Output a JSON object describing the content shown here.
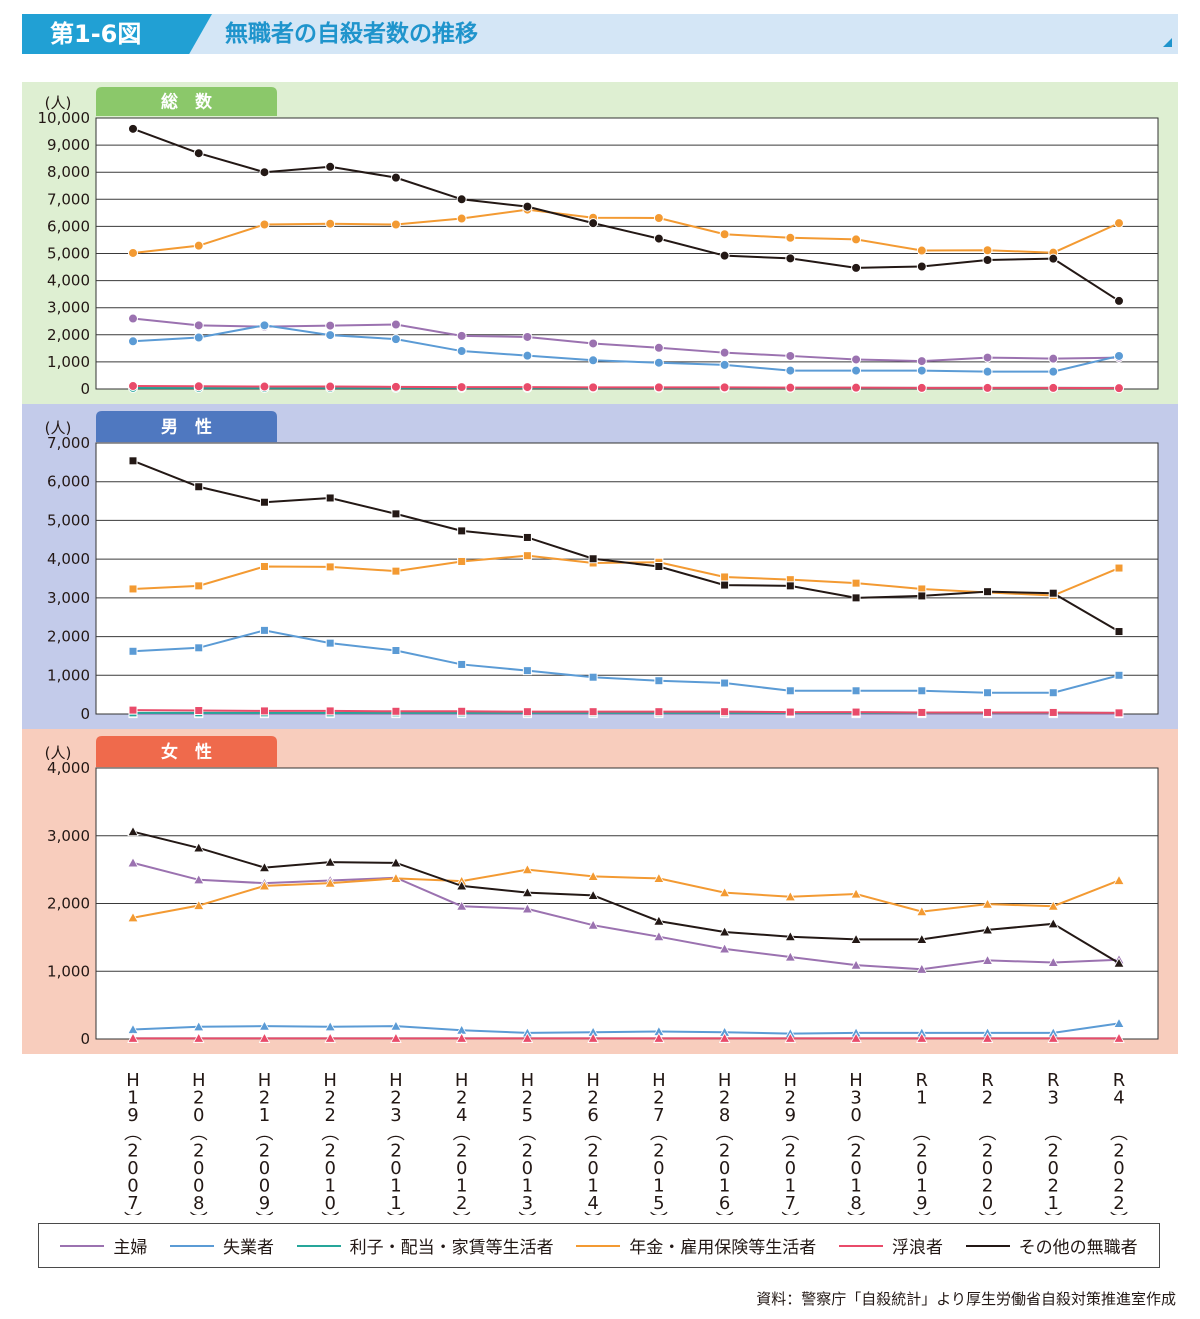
{
  "header": {
    "figure_no": "第1-6図",
    "title": "無職者の自殺者数の推移"
  },
  "colors": {
    "housewife": "#9b72b0",
    "unemployed": "#5b9bd5",
    "interest_dividend": "#26a69a",
    "pension": "#f39a32",
    "vagrant": "#e94b6a",
    "other": "#231815",
    "panel_total_bg": "#deefd2",
    "panel_male_bg": "#c3cbea",
    "panel_female_bg": "#f8cdbd",
    "tab_total": "#8bc86a",
    "tab_male": "#4f78c0",
    "tab_female": "#ef6a4c"
  },
  "chart_data": [
    {
      "type": "line",
      "panel": "total",
      "tab_label": "総　数",
      "ylabel": "(人)",
      "ylim": [
        0,
        10000
      ],
      "yticks": [
        "0",
        "1,000",
        "2,000",
        "3,000",
        "4,000",
        "5,000",
        "6,000",
        "7,000",
        "8,000",
        "9,000",
        "10,000"
      ],
      "yticks_values": [
        0,
        1000,
        2000,
        3000,
        4000,
        5000,
        6000,
        7000,
        8000,
        9000,
        10000
      ],
      "grid": true,
      "marker": "circle",
      "series": [
        {
          "name": "主婦",
          "color_key": "housewife",
          "values": [
            2600,
            2350,
            2300,
            2340,
            2380,
            1960,
            1920,
            1680,
            1520,
            1340,
            1220,
            1090,
            1030,
            1160,
            1120,
            1160
          ]
        },
        {
          "name": "失業者",
          "color_key": "unemployed",
          "values": [
            1760,
            1900,
            2350,
            1990,
            1840,
            1400,
            1230,
            1060,
            970,
            890,
            680,
            680,
            680,
            640,
            640,
            1220
          ]
        },
        {
          "name": "利子・配当・家賃等生活者",
          "color_key": "interest_dividend",
          "values": [
            40,
            40,
            40,
            40,
            40,
            40,
            40,
            40,
            40,
            40,
            40,
            40,
            40,
            40,
            40,
            40
          ]
        },
        {
          "name": "年金・雇用保険等生活者",
          "color_key": "pension",
          "values": [
            5020,
            5290,
            6070,
            6100,
            6070,
            6290,
            6620,
            6320,
            6310,
            5710,
            5580,
            5520,
            5110,
            5120,
            5030,
            6120
          ]
        },
        {
          "name": "浮浪者",
          "color_key": "vagrant",
          "values": [
            110,
            100,
            90,
            90,
            80,
            70,
            70,
            60,
            60,
            60,
            50,
            50,
            40,
            40,
            40,
            30
          ]
        },
        {
          "name": "その他の無職者",
          "color_key": "other",
          "values": [
            9600,
            8700,
            8000,
            8200,
            7800,
            7000,
            6730,
            6120,
            5550,
            4920,
            4820,
            4470,
            4520,
            4760,
            4810,
            3250
          ]
        }
      ]
    },
    {
      "type": "line",
      "panel": "male",
      "tab_label": "男　性",
      "ylabel": "(人)",
      "ylim": [
        0,
        7000
      ],
      "yticks": [
        "0",
        "1,000",
        "2,000",
        "3,000",
        "4,000",
        "5,000",
        "6,000",
        "7,000"
      ],
      "yticks_values": [
        0,
        1000,
        2000,
        3000,
        4000,
        5000,
        6000,
        7000
      ],
      "grid": true,
      "marker": "square",
      "series": [
        {
          "name": "主婦",
          "color_key": "housewife",
          "values": [
            10,
            10,
            10,
            10,
            10,
            10,
            10,
            10,
            10,
            10,
            10,
            10,
            10,
            10,
            10,
            10
          ]
        },
        {
          "name": "失業者",
          "color_key": "unemployed",
          "values": [
            1620,
            1710,
            2160,
            1830,
            1640,
            1280,
            1120,
            950,
            860,
            800,
            600,
            600,
            600,
            550,
            550,
            1000
          ]
        },
        {
          "name": "利子・配当・家賃等生活者",
          "color_key": "interest_dividend",
          "values": [
            30,
            30,
            30,
            30,
            30,
            30,
            30,
            30,
            30,
            30,
            30,
            30,
            30,
            30,
            30,
            30
          ]
        },
        {
          "name": "年金・雇用保険等生活者",
          "color_key": "pension",
          "values": [
            3230,
            3310,
            3810,
            3800,
            3690,
            3940,
            4090,
            3900,
            3920,
            3540,
            3470,
            3380,
            3230,
            3140,
            3060,
            3770
          ]
        },
        {
          "name": "浮浪者",
          "color_key": "vagrant",
          "values": [
            100,
            90,
            80,
            80,
            70,
            70,
            60,
            60,
            60,
            60,
            50,
            50,
            40,
            40,
            40,
            30
          ]
        },
        {
          "name": "その他の無職者",
          "color_key": "other",
          "values": [
            6540,
            5870,
            5470,
            5580,
            5170,
            4730,
            4560,
            4010,
            3810,
            3330,
            3310,
            3000,
            3050,
            3160,
            3120,
            2130
          ]
        }
      ]
    },
    {
      "type": "line",
      "panel": "female",
      "tab_label": "女　性",
      "ylabel": "(人)",
      "ylim": [
        0,
        4000
      ],
      "yticks": [
        "0",
        "1,000",
        "2,000",
        "3,000",
        "4,000"
      ],
      "yticks_values": [
        0,
        1000,
        2000,
        3000,
        4000
      ],
      "grid": true,
      "marker": "triangle",
      "series": [
        {
          "name": "主婦",
          "color_key": "housewife",
          "values": [
            2600,
            2350,
            2300,
            2340,
            2380,
            1960,
            1920,
            1680,
            1510,
            1330,
            1210,
            1090,
            1030,
            1160,
            1130,
            1170
          ]
        },
        {
          "name": "失業者",
          "color_key": "unemployed",
          "values": [
            140,
            180,
            190,
            180,
            190,
            130,
            90,
            100,
            110,
            100,
            80,
            90,
            90,
            90,
            90,
            230
          ]
        },
        {
          "name": "利子・配当・家賃等生活者",
          "color_key": "interest_dividend",
          "values": [
            10,
            10,
            10,
            10,
            10,
            10,
            10,
            10,
            10,
            10,
            10,
            10,
            10,
            10,
            10,
            10
          ]
        },
        {
          "name": "年金・雇用保険等生活者",
          "color_key": "pension",
          "values": [
            1790,
            1970,
            2260,
            2300,
            2370,
            2330,
            2500,
            2400,
            2370,
            2160,
            2100,
            2140,
            1880,
            1990,
            1960,
            2340
          ]
        },
        {
          "name": "浮浪者",
          "color_key": "vagrant",
          "values": [
            10,
            10,
            10,
            10,
            10,
            10,
            10,
            10,
            10,
            10,
            10,
            10,
            10,
            10,
            10,
            10
          ]
        },
        {
          "name": "その他の無職者",
          "color_key": "other",
          "values": [
            3060,
            2820,
            2530,
            2610,
            2600,
            2260,
            2160,
            2120,
            1740,
            1580,
            1510,
            1470,
            1470,
            1610,
            1700,
            1120
          ]
        }
      ]
    }
  ],
  "x_categories": [
    "H19(2007)",
    "H20(2008)",
    "H21(2009)",
    "H22(2010)",
    "H23(2011)",
    "H24(2012)",
    "H25(2013)",
    "H26(2014)",
    "H27(2015)",
    "H28(2016)",
    "H29(2017)",
    "H30(2018)",
    "R1 (2019)",
    "R2 (2020)",
    "R3 (2021)",
    "R4 (2022)"
  ],
  "x_labels_vertical": [
    [
      "H",
      "1",
      "9",
      "︵",
      "2",
      "0",
      "0",
      "7",
      "︶"
    ],
    [
      "H",
      "2",
      "0",
      "︵",
      "2",
      "0",
      "0",
      "8",
      "︶"
    ],
    [
      "H",
      "2",
      "1",
      "︵",
      "2",
      "0",
      "0",
      "9",
      "︶"
    ],
    [
      "H",
      "2",
      "2",
      "︵",
      "2",
      "0",
      "1",
      "0",
      "︶"
    ],
    [
      "H",
      "2",
      "3",
      "︵",
      "2",
      "0",
      "1",
      "1",
      "︶"
    ],
    [
      "H",
      "2",
      "4",
      "︵",
      "2",
      "0",
      "1",
      "2",
      "︶"
    ],
    [
      "H",
      "2",
      "5",
      "︵",
      "2",
      "0",
      "1",
      "3",
      "︶"
    ],
    [
      "H",
      "2",
      "6",
      "︵",
      "2",
      "0",
      "1",
      "4",
      "︶"
    ],
    [
      "H",
      "2",
      "7",
      "︵",
      "2",
      "0",
      "1",
      "5",
      "︶"
    ],
    [
      "H",
      "2",
      "8",
      "︵",
      "2",
      "0",
      "1",
      "6",
      "︶"
    ],
    [
      "H",
      "2",
      "9",
      "︵",
      "2",
      "0",
      "1",
      "7",
      "︶"
    ],
    [
      "H",
      "3",
      "0",
      "︵",
      "2",
      "0",
      "1",
      "8",
      "︶"
    ],
    [
      "R",
      "1",
      "",
      "︵",
      "2",
      "0",
      "1",
      "9",
      "︶"
    ],
    [
      "R",
      "2",
      "",
      "︵",
      "2",
      "0",
      "2",
      "0",
      "︶"
    ],
    [
      "R",
      "3",
      "",
      "︵",
      "2",
      "0",
      "2",
      "1",
      "︶"
    ],
    [
      "R",
      "4",
      "",
      "︵",
      "2",
      "0",
      "2",
      "2",
      "︶"
    ]
  ],
  "legend": [
    {
      "label": "主婦",
      "color_key": "housewife"
    },
    {
      "label": "失業者",
      "color_key": "unemployed"
    },
    {
      "label": "利子・配当・家賃等生活者",
      "color_key": "interest_dividend"
    },
    {
      "label": "年金・雇用保険等生活者",
      "color_key": "pension"
    },
    {
      "label": "浮浪者",
      "color_key": "vagrant"
    },
    {
      "label": "その他の無職者",
      "color_key": "other"
    }
  ],
  "source": "資料：警察庁「自殺統計」より厚生労働省自殺対策推進室作成"
}
